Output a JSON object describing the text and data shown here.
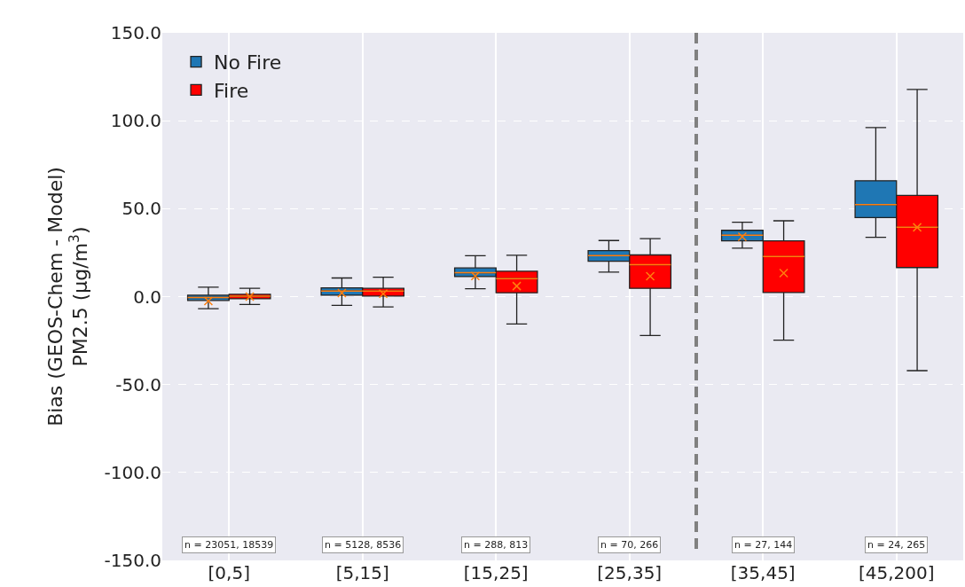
{
  "chart_data": {
    "type": "box",
    "ylabel": "Bias (GEOS-Chem - Model)\nPM2.5 (μg/m$^{3}$)",
    "categories": [
      "[0,5]",
      "[5,15]",
      "[15,25]",
      "[25,35]",
      "[35,45]",
      "[45,200]"
    ],
    "series": [
      {
        "name": "No Fire",
        "color": "#1f77b4",
        "boxes": [
          {
            "low": -6.9,
            "q1": -2.2,
            "median": -0.5,
            "q3": 0.8,
            "high": 5.4,
            "mean": -2.5
          },
          {
            "low": -5,
            "q1": 0.8,
            "median": 3.2,
            "q3": 5,
            "high": 10.6,
            "mean": 2
          },
          {
            "low": 4.5,
            "q1": 11.4,
            "median": 13.6,
            "q3": 16.3,
            "high": 23.3,
            "mean": 11.7
          },
          {
            "low": 13.9,
            "q1": 20.1,
            "median": 23.3,
            "q3": 26.2,
            "high": 31.9
          },
          {
            "low": 27.5,
            "q1": 31.7,
            "median": 34.9,
            "q3": 37.7,
            "high": 42.3,
            "mean": 34
          },
          {
            "low": 33.7,
            "q1": 44.9,
            "median": 52.3,
            "q3": 65.9,
            "high": 96.1
          }
        ]
      },
      {
        "name": "Fire",
        "color": "#ff0000",
        "boxes": [
          {
            "low": -4.5,
            "q1": -1.2,
            "median": 0.2,
            "q3": 1.3,
            "high": 4.7,
            "mean": 0
          },
          {
            "low": -5.9,
            "q1": 0.3,
            "median": 3.2,
            "q3": 4.7,
            "high": 11,
            "mean": 1.6
          },
          {
            "low": -15.6,
            "q1": 2.2,
            "median": 10.2,
            "q3": 14.4,
            "high": 23.5,
            "mean": 6
          },
          {
            "low": -22.1,
            "q1": 4.7,
            "median": 18.1,
            "q3": 23.7,
            "high": 33,
            "mean": 11.6
          },
          {
            "low": -24.8,
            "q1": 2.3,
            "median": 22.8,
            "q3": 31.7,
            "high": 43.1,
            "mean": 13.4
          },
          {
            "low": -42.1,
            "q1": 16.5,
            "median": 39.4,
            "q3": 57.5,
            "high": 117.8,
            "mean": 39.4
          }
        ]
      }
    ],
    "ylim": [
      -150,
      150
    ],
    "yticks": [
      {
        "value": -150,
        "label": "-150.0"
      },
      {
        "value": -100,
        "label": "-100.0"
      },
      {
        "value": -50,
        "label": "-50.0"
      },
      {
        "value": 0,
        "label": "0.0"
      },
      {
        "value": 50,
        "label": "50.0"
      },
      {
        "value": 100,
        "label": "100.0"
      },
      {
        "value": 150,
        "label": "150.0"
      }
    ],
    "annotations": [
      "n = 23051, 18539",
      "n = 5128, 8536",
      "n = 288, 813",
      "n = 70, 266",
      "n = 27, 144",
      "n = 24, 265"
    ],
    "grid": true,
    "legend": "top left"
  }
}
